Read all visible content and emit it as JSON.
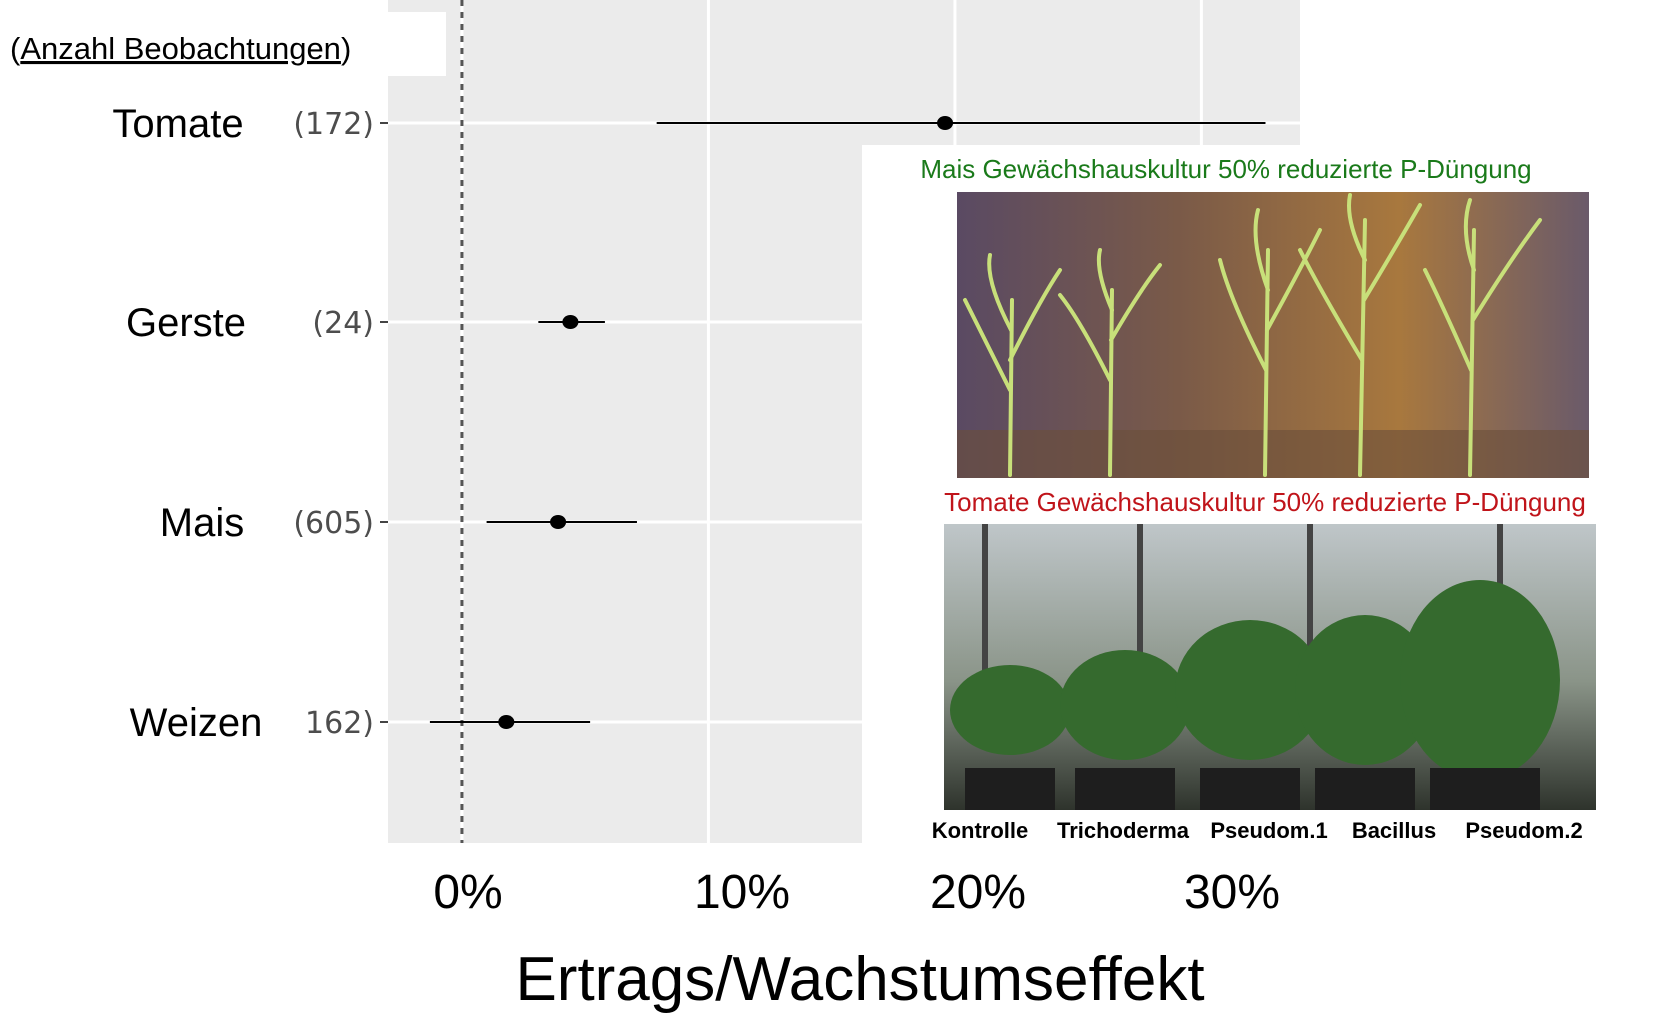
{
  "header_prefix": "(",
  "header_label": "Anzahl Beobachtungen",
  "header_suffix": ")",
  "chart_data": {
    "type": "forest",
    "xlabel": "Ertrags/Wachstumseffekt",
    "xlim": [
      -3,
      34
    ],
    "xticks": [
      0,
      10,
      20,
      30
    ],
    "xtick_labels": [
      "0%",
      "10%",
      "20%",
      "30%"
    ],
    "reference_line": 0,
    "rows": [
      {
        "crop": "Tomate",
        "obs_label": "(172)",
        "estimate": 19.6,
        "ci_low": 7.9,
        "ci_high": 32.6
      },
      {
        "crop": "Gerste",
        "obs_label": "(24)",
        "estimate": 4.4,
        "ci_low": 3.1,
        "ci_high": 5.8
      },
      {
        "crop": "Mais",
        "obs_label": "(605)",
        "estimate": 3.9,
        "ci_low": 1.0,
        "ci_high": 7.1
      },
      {
        "crop": "Weizen",
        "obs_label": "162)",
        "estimate": 1.8,
        "ci_low": -1.3,
        "ci_high": 5.2
      }
    ],
    "grid": true
  },
  "inset": {
    "maize": {
      "title": "Mais Gewächshauskultur 50% reduzierte  P-Düngung",
      "title_color": "#1a7a1a"
    },
    "tomato": {
      "title": "Tomate Gewächshauskultur 50% reduzierte  P-Düngung",
      "title_color": "#c0141a",
      "treatments": [
        "Kontrolle",
        "Trichoderma",
        "Pseudom.1",
        "Bacillus",
        "Pseudom.2"
      ]
    }
  }
}
